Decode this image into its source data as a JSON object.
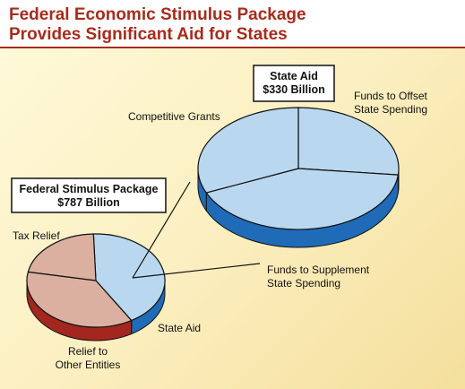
{
  "title_lines": [
    "Federal Economic Stimulus Package",
    "Provides Significant Aid for States"
  ],
  "colors": {
    "title": "#a62c1c",
    "state_top": "#b9d7ee",
    "state_side": "#1f6bb8",
    "tax_top": "#dbb0a1",
    "tax_side": "#a3261f",
    "relief_top": "#dbb0a1",
    "relief_side": "#a3261f",
    "competitive_top": "#b9d7ee",
    "competitive_side": "#1f6bb8",
    "offset_top": "#b9d7ee",
    "offset_side": "#1f6bb8",
    "supplement_top": "#b9d7ee",
    "supplement_side": "#1f6bb8"
  },
  "chart_data": [
    {
      "type": "pie",
      "title_lines": [
        "Federal Stimulus Package",
        "$787 Billion"
      ],
      "slices": [
        {
          "label_lines": [
            "State Aid"
          ],
          "value": 330,
          "color_key": "state"
        },
        {
          "label_lines": [
            "Tax Relief"
          ],
          "value": 288,
          "color_key": "tax"
        },
        {
          "label_lines": [
            "Relief to",
            "Other Entities"
          ],
          "value": 169,
          "color_key": "relief"
        }
      ]
    },
    {
      "type": "pie",
      "title_lines": [
        "State Aid",
        "$330 Billion"
      ],
      "slices": [
        {
          "label_lines": [
            "Competitive Grants"
          ],
          "value": 88,
          "color_key": "competitive"
        },
        {
          "label_lines": [
            "Funds to Offset",
            "State Spending"
          ],
          "value": 138,
          "color_key": "offset"
        },
        {
          "label_lines": [
            "Funds to Supplement",
            "State Spending"
          ],
          "value": 104,
          "color_key": "supplement"
        }
      ]
    }
  ]
}
